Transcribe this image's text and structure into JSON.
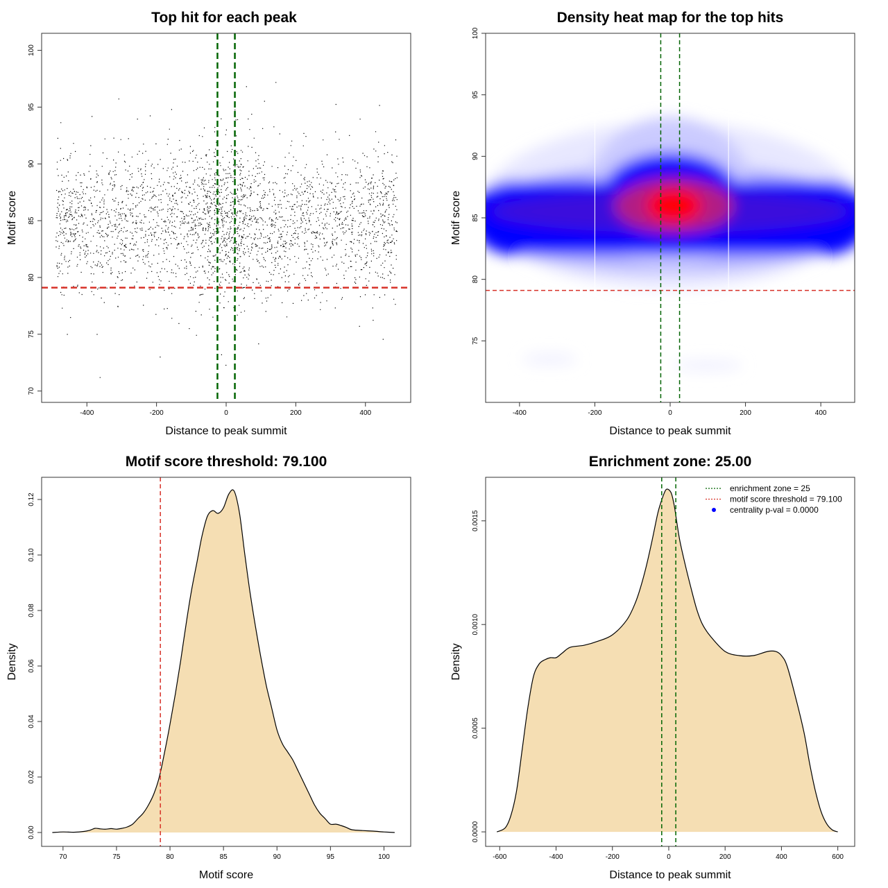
{
  "colors": {
    "threshold": "#d73027",
    "zone": "#006400",
    "density_fill": "#f5deb3",
    "heat_low": "#ffffff",
    "heat_mid": "#0000ff",
    "heat_high": "#ff0000",
    "points": "#000000",
    "centrality_dot": "#0000ff"
  },
  "chart_data": [
    {
      "type": "scatter",
      "title": "Top hit for each peak",
      "xlabel": "Distance to peak summit",
      "ylabel": "Motif score",
      "xlim": [
        -530,
        530
      ],
      "ylim": [
        69,
        101.5
      ],
      "xticks": [
        -400,
        -200,
        0,
        200,
        400
      ],
      "yticks": [
        70,
        75,
        80,
        85,
        90,
        95,
        100
      ],
      "grid": false,
      "n_points_approx": 8000,
      "x_range": [
        -490,
        490
      ],
      "score_center": 85,
      "score_sd": 3,
      "central_enrichment": true,
      "threshold_y": 79.1,
      "zone_x": [
        -25,
        25
      ]
    },
    {
      "type": "heatmap",
      "title": "Density heat map for the top hits",
      "xlabel": "Distance to peak summit",
      "ylabel": "Motif score",
      "xlim": [
        -490,
        490
      ],
      "ylim": [
        70,
        100
      ],
      "xticks": [
        -400,
        -200,
        0,
        200,
        400
      ],
      "yticks": [
        75,
        80,
        85,
        90,
        95,
        100
      ],
      "grid": false,
      "peak": {
        "x": 10,
        "y": 86
      },
      "threshold_y": 79.1,
      "zone_x": [
        -25,
        25
      ]
    },
    {
      "type": "area",
      "title": "Motif score threshold: 79.100",
      "xlabel": "Motif score",
      "ylabel": "Density",
      "xlim": [
        68,
        102.5
      ],
      "ylim": [
        -0.005,
        0.128
      ],
      "xticks": [
        70,
        75,
        80,
        85,
        90,
        95,
        100
      ],
      "yticks": [
        0.0,
        0.02,
        0.04,
        0.06,
        0.08,
        0.1,
        0.12
      ],
      "ytick_labels": [
        "0.00",
        "0.02",
        "0.04",
        "0.06",
        "0.08",
        "0.10",
        "0.12"
      ],
      "grid": false,
      "x": [
        69,
        70,
        71,
        72,
        72.5,
        73,
        73.5,
        74,
        74.5,
        75,
        75.5,
        76,
        76.5,
        77,
        77.5,
        78,
        78.5,
        79,
        79.5,
        80,
        80.5,
        81,
        81.5,
        82,
        82.5,
        83,
        83.5,
        84,
        84.5,
        85,
        85.5,
        86,
        86.5,
        87,
        87.5,
        88,
        88.5,
        89,
        89.5,
        90,
        90.5,
        91,
        91.5,
        92,
        92.5,
        93,
        93.5,
        94,
        94.5,
        95,
        95.5,
        96,
        96.5,
        97,
        98,
        99,
        100,
        101
      ],
      "y": [
        0.0,
        0.0002,
        0.0001,
        0.0004,
        0.0008,
        0.0015,
        0.0013,
        0.0012,
        0.0014,
        0.0012,
        0.0015,
        0.002,
        0.003,
        0.005,
        0.007,
        0.01,
        0.014,
        0.02,
        0.029,
        0.039,
        0.05,
        0.062,
        0.075,
        0.087,
        0.097,
        0.107,
        0.114,
        0.116,
        0.115,
        0.117,
        0.122,
        0.123,
        0.115,
        0.1,
        0.086,
        0.074,
        0.063,
        0.053,
        0.045,
        0.037,
        0.032,
        0.029,
        0.026,
        0.022,
        0.018,
        0.014,
        0.01,
        0.007,
        0.005,
        0.003,
        0.003,
        0.0025,
        0.0018,
        0.001,
        0.0007,
        0.0005,
        0.0002,
        0.0
      ],
      "threshold_x": 79.1
    },
    {
      "type": "area",
      "title": "Enrichment zone: 25.00",
      "xlabel": "Distance to peak summit",
      "ylabel": "Density",
      "xlim": [
        -650,
        660
      ],
      "ylim": [
        -7e-05,
        0.00171
      ],
      "xticks": [
        -600,
        -400,
        -200,
        0,
        200,
        400,
        600
      ],
      "yticks": [
        0.0,
        0.0005,
        0.001,
        0.0015
      ],
      "ytick_labels": [
        "0.0000",
        "0.0005",
        "0.0010",
        "0.0015"
      ],
      "grid": false,
      "x": [
        -610,
        -580,
        -560,
        -540,
        -520,
        -500,
        -480,
        -460,
        -440,
        -420,
        -400,
        -380,
        -350,
        -300,
        -250,
        -200,
        -150,
        -120,
        -100,
        -80,
        -60,
        -40,
        -30,
        -20,
        -10,
        0,
        10,
        20,
        30,
        40,
        60,
        80,
        100,
        120,
        150,
        200,
        250,
        300,
        350,
        380,
        400,
        420,
        450,
        480,
        500,
        520,
        540,
        560,
        580,
        600
      ],
      "y": [
        0.0,
        2e-05,
        8e-05,
        0.0002,
        0.0004,
        0.0006,
        0.00075,
        0.00081,
        0.00083,
        0.00084,
        0.00084,
        0.00086,
        0.00089,
        0.0009,
        0.00092,
        0.00095,
        0.00102,
        0.0011,
        0.00118,
        0.00128,
        0.0014,
        0.00153,
        0.00158,
        0.00162,
        0.00165,
        0.00165,
        0.00163,
        0.00157,
        0.00148,
        0.0014,
        0.00128,
        0.00117,
        0.00107,
        0.001,
        0.00094,
        0.00087,
        0.00085,
        0.00085,
        0.00087,
        0.00087,
        0.00085,
        0.0008,
        0.00065,
        0.00048,
        0.00033,
        0.0002,
        0.0001,
        4e-05,
        1e-05,
        0.0
      ],
      "zone_x": [
        -25,
        25
      ],
      "legend": {
        "placement": "top-right",
        "entries": [
          {
            "label": "enrichment zone = 25",
            "style": "dotted",
            "color": "#006400"
          },
          {
            "label": "motif score threshold = 79.100",
            "style": "dotted",
            "color": "#d73027"
          },
          {
            "label": "centrality p-val = 0.0000",
            "style": "dot",
            "color": "#0000ff"
          }
        ]
      }
    }
  ]
}
